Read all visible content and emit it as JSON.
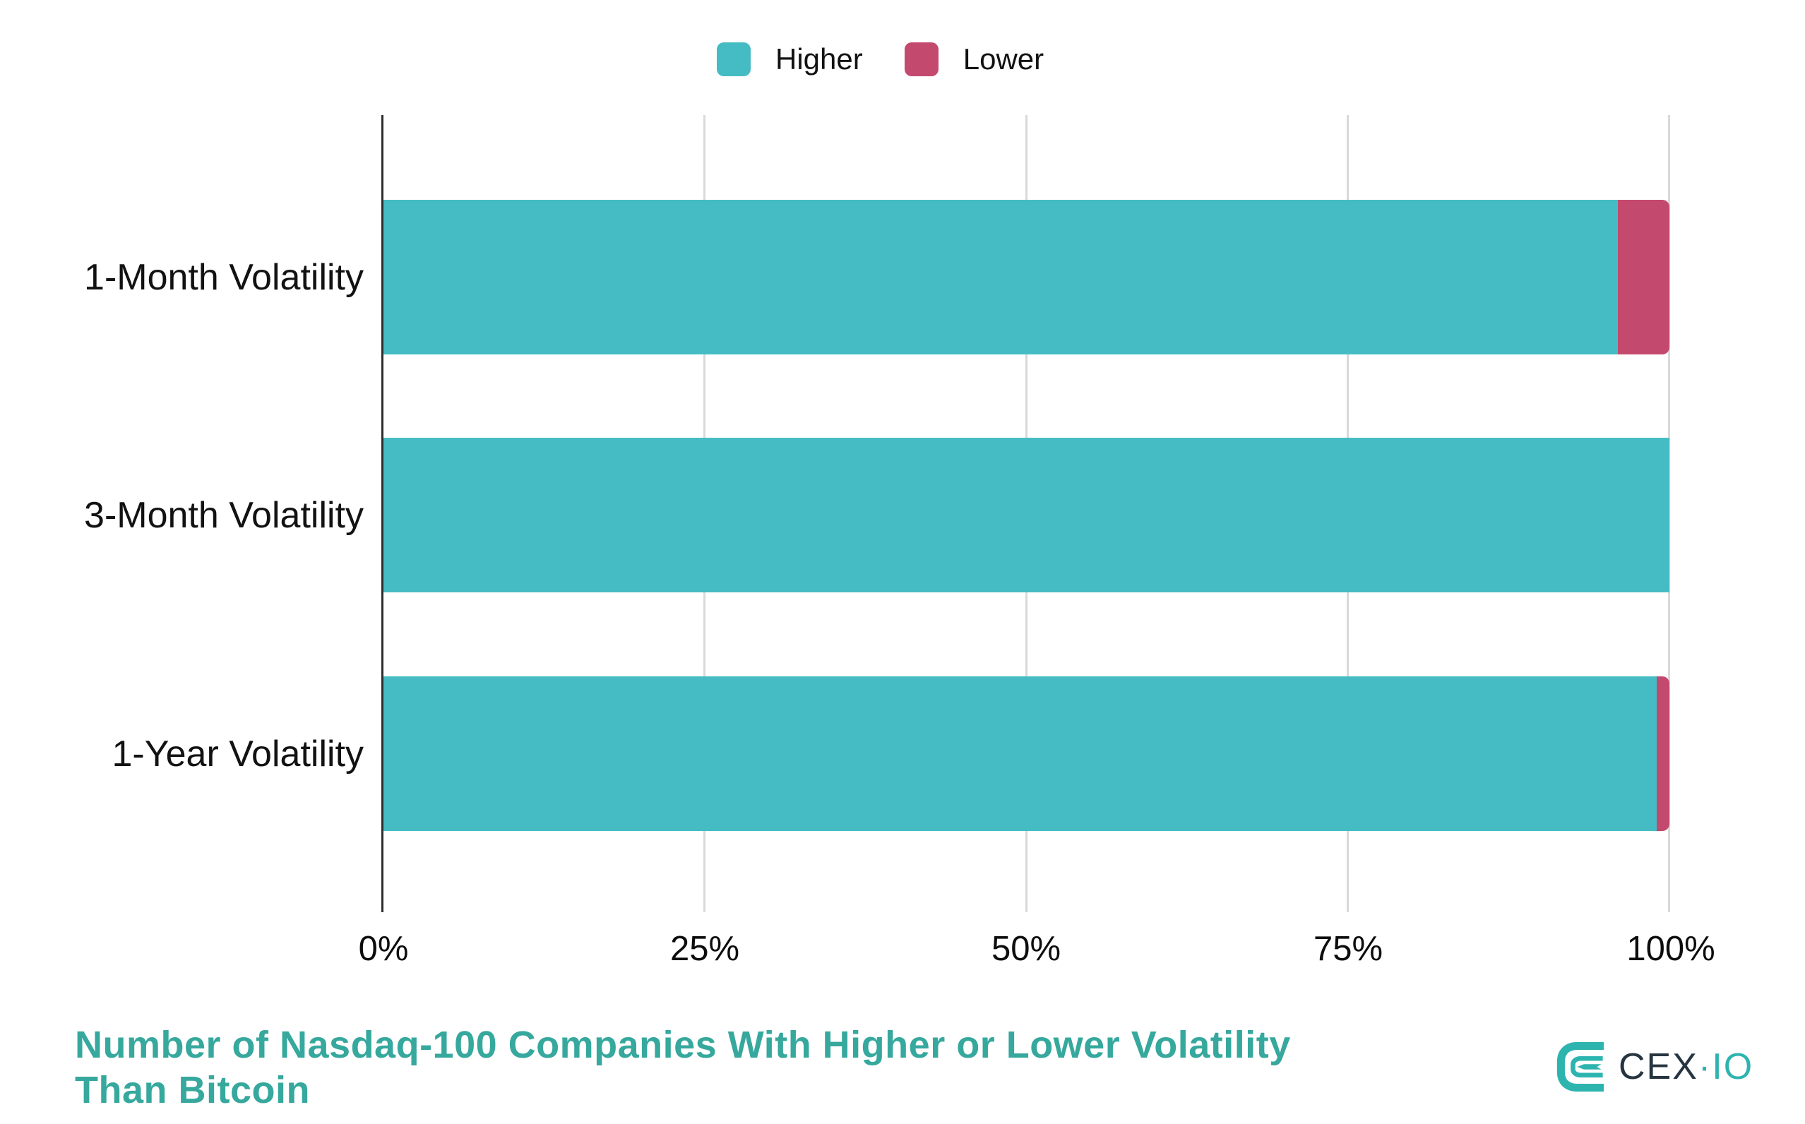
{
  "legend": {
    "items": [
      {
        "label": "Higher",
        "color": "#45BCC4"
      },
      {
        "label": "Lower",
        "color": "#C4496F"
      }
    ]
  },
  "chart_data": {
    "type": "bar",
    "orientation": "horizontal",
    "stacked": true,
    "categories": [
      "1-Month Volatility",
      "3-Month Volatility",
      "1-Year Volatility"
    ],
    "series": [
      {
        "name": "Higher",
        "color": "#45BCC4",
        "values": [
          96,
          100,
          99
        ]
      },
      {
        "name": "Lower",
        "color": "#C4496F",
        "values": [
          4,
          0,
          1
        ]
      }
    ],
    "unit": "%",
    "x_ticks": [
      "0%",
      "25%",
      "50%",
      "75%",
      "100%"
    ],
    "xlim": [
      0,
      100
    ],
    "grid": "vertical",
    "legend_position": "top-center",
    "title": "Number of Nasdaq-100 Companies With Higher or Lower Volatility Than Bitcoin"
  },
  "title": {
    "lines": [
      "Number of Nasdaq-100 Companies With Higher or Lower Volatility",
      "Than Bitcoin"
    ],
    "color": "#36A89D"
  },
  "brand": {
    "name": "CEX.IO",
    "cex": "CEX",
    "dot": "·",
    "io": "IO",
    "teal": "#2EB4AF",
    "dark": "#263540"
  }
}
